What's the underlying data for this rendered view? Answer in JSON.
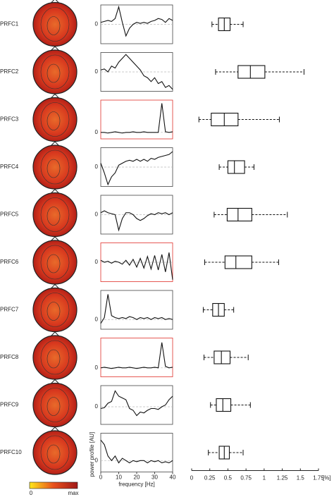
{
  "chart_data": {
    "type": "component-panels",
    "frequency": [
      0,
      2,
      4,
      6,
      8,
      10,
      12,
      14,
      16,
      18,
      20,
      22,
      24,
      26,
      28,
      30,
      32,
      34,
      36,
      38,
      40
    ],
    "xlim": [
      0,
      40
    ],
    "xticks": [
      0,
      10,
      20,
      30,
      40
    ],
    "xlabel": "frequency [Hz]",
    "ylabel": "power profile [AU]",
    "box_lim": [
      0,
      1.75
    ],
    "box_ticks": [
      0,
      0.25,
      0.5,
      0.75,
      1,
      1.25,
      1.5,
      1.75
    ],
    "box_unit": "[%]",
    "colorbar": {
      "min_label": "0",
      "max_label": "max",
      "colors": [
        "#ffe81a",
        "#e8501c",
        "#a01818"
      ]
    },
    "components": [
      {
        "name": "PRFC1",
        "color": "#222222",
        "ylim": [
          -1,
          1
        ],
        "yticks": [
          0
        ],
        "spectrum": [
          0.1,
          0.15,
          0.2,
          0.15,
          0.3,
          0.9,
          0.1,
          -0.6,
          -0.2,
          0,
          0.1,
          0.05,
          0.1,
          0.05,
          0.15,
          0.2,
          0.3,
          0.25,
          0.1,
          0.3,
          0.2
        ],
        "box": {
          "min": 0.28,
          "q1": 0.37,
          "median": 0.45,
          "q3": 0.53,
          "max": 0.71
        }
      },
      {
        "name": "PRFC2",
        "color": "#222222",
        "ylim": [
          -1,
          1
        ],
        "yticks": [
          0
        ],
        "spectrum": [
          0.1,
          0.15,
          0.0,
          0.3,
          0.2,
          0.5,
          0.7,
          0.9,
          0.7,
          0.5,
          0.3,
          0.1,
          -0.2,
          -0.3,
          -0.5,
          -0.3,
          -0.6,
          -0.5,
          -0.8,
          -0.7,
          -0.9
        ],
        "box": {
          "min": 0.33,
          "q1": 0.64,
          "median": 0.81,
          "q3": 1.01,
          "max": 1.55
        }
      },
      {
        "name": "PRFC3",
        "color": "#e0302a",
        "ylim": [
          -0.2,
          1
        ],
        "yticks": [
          0
        ],
        "spectrum": [
          0,
          0,
          -0.02,
          0,
          0.02,
          0,
          -0.02,
          0,
          0,
          0.02,
          0,
          0,
          0.02,
          0,
          0,
          0,
          0,
          0.9,
          0.02,
          0,
          0.02
        ],
        "box": {
          "min": 0.1,
          "q1": 0.27,
          "median": 0.45,
          "q3": 0.64,
          "max": 1.21
        }
      },
      {
        "name": "PRFC4",
        "color": "#222222",
        "ylim": [
          -1,
          1
        ],
        "yticks": [
          0
        ],
        "spectrum": [
          0.2,
          -0.3,
          -0.9,
          -0.5,
          -0.3,
          0.1,
          0.2,
          0.3,
          0.35,
          0.3,
          0.4,
          0.3,
          0.4,
          0.3,
          0.45,
          0.4,
          0.5,
          0.55,
          0.6,
          0.65,
          0.8
        ],
        "box": {
          "min": 0.38,
          "q1": 0.5,
          "median": 0.59,
          "q3": 0.73,
          "max": 0.86
        }
      },
      {
        "name": "PRFC5",
        "color": "#222222",
        "ylim": [
          -1,
          1
        ],
        "yticks": [
          0
        ],
        "spectrum": [
          0.1,
          0.2,
          0.1,
          0.05,
          0.0,
          -0.8,
          -0.2,
          0.1,
          0.1,
          0.0,
          -0.2,
          -0.3,
          -0.2,
          -0.05,
          0.05,
          0.0,
          0.1,
          0.05,
          0.1,
          0.0,
          0.1
        ],
        "box": {
          "min": 0.31,
          "q1": 0.49,
          "median": 0.64,
          "q3": 0.83,
          "max": 1.32
        }
      },
      {
        "name": "PRFC6",
        "color": "#e0302a",
        "ylim": [
          -1,
          1
        ],
        "yticks": [
          0
        ],
        "spectrum": [
          0.1,
          0.0,
          0.05,
          -0.05,
          0.05,
          0.0,
          -0.1,
          0.1,
          -0.15,
          0.15,
          -0.25,
          0.2,
          -0.3,
          0.3,
          -0.35,
          0.35,
          -0.4,
          0.4,
          -0.5,
          0.5,
          -0.9
        ],
        "box": {
          "min": 0.18,
          "q1": 0.46,
          "median": 0.61,
          "q3": 0.83,
          "max": 1.2
        }
      },
      {
        "name": "PRFC7",
        "color": "#222222",
        "ylim": [
          -0.5,
          1.5
        ],
        "yticks": [
          0
        ],
        "spectrum": [
          -0.2,
          0.1,
          1.3,
          0.2,
          0.1,
          0.05,
          0.1,
          0.05,
          0.15,
          0.1,
          0.0,
          0.1,
          0.05,
          0.1,
          0.0,
          0.1,
          0.05,
          0.1,
          0.0,
          0.05,
          0.0
        ],
        "box": {
          "min": 0.16,
          "q1": 0.29,
          "median": 0.37,
          "q3": 0.45,
          "max": 0.58
        }
      },
      {
        "name": "PRFC8",
        "color": "#e0302a",
        "ylim": [
          -0.3,
          1
        ],
        "yticks": [
          0
        ],
        "spectrum": [
          0,
          0.02,
          0,
          -0.02,
          0,
          0.02,
          0,
          0,
          0.02,
          0,
          -0.02,
          0,
          0.02,
          0,
          0,
          0.02,
          0,
          0.85,
          0.05,
          0,
          0.02
        ],
        "box": {
          "min": 0.17,
          "q1": 0.31,
          "median": 0.41,
          "q3": 0.53,
          "max": 0.78
        }
      },
      {
        "name": "PRFC9",
        "color": "#222222",
        "ylim": [
          -1,
          1.2
        ],
        "yticks": [
          0
        ],
        "spectrum": [
          -0.1,
          -0.05,
          0.2,
          0.3,
          0.9,
          0.6,
          0.5,
          0.4,
          -0.1,
          -0.2,
          -0.5,
          -0.3,
          -0.35,
          -0.2,
          -0.1,
          -0.1,
          -0.15,
          0.0,
          0.1,
          0.4,
          0.6
        ],
        "box": {
          "min": 0.26,
          "q1": 0.34,
          "median": 0.43,
          "q3": 0.54,
          "max": 0.81
        }
      },
      {
        "name": "PRFC10",
        "color": "#222222",
        "ylim": [
          -0.5,
          1.2
        ],
        "yticks": [
          0
        ],
        "spectrum": [
          0.9,
          0.7,
          0.2,
          0.0,
          0.2,
          -0.1,
          0.1,
          0.0,
          -0.1,
          0.0,
          -0.05,
          0.0,
          0.0,
          -0.1,
          0.0,
          -0.05,
          0.0,
          -0.1,
          -0.05,
          -0.1,
          0.0
        ],
        "box": {
          "min": 0.23,
          "q1": 0.38,
          "median": 0.45,
          "q3": 0.52,
          "max": 0.71
        }
      }
    ]
  }
}
